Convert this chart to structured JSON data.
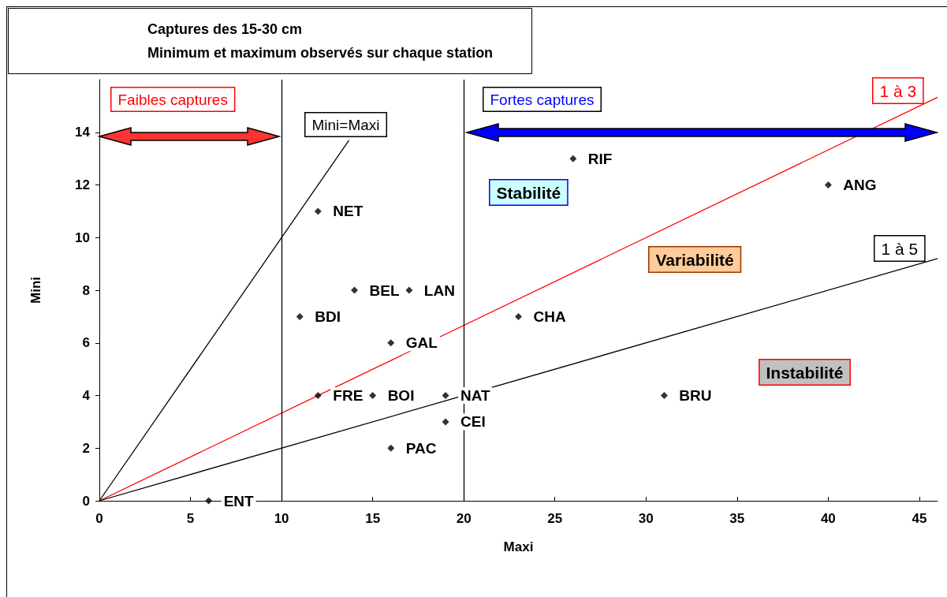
{
  "chart_data": {
    "type": "scatter",
    "title": "Captures des 15-30 cm\nMinimum et maximum observés sur chaque station",
    "xlabel": "Maxi",
    "ylabel": "Mini",
    "x": [
      6,
      12,
      15,
      19,
      19,
      16,
      11,
      14,
      17,
      16,
      12,
      26,
      40,
      23,
      31
    ],
    "series": [
      {
        "color": "#000000",
        "values": [
          0,
          4,
          4,
          4,
          3,
          2,
          7,
          8,
          8,
          6,
          11,
          13,
          12,
          7,
          4
        ]
      },
      {
        "type": "line",
        "marker": "none",
        "color": "#000000",
        "x": [
          0,
          13.7
        ],
        "values": [
          0,
          13.7
        ]
      },
      {
        "type": "line",
        "marker": "none",
        "color": "#ff0000",
        "x": [
          0,
          46
        ],
        "values": [
          0,
          15.33
        ]
      },
      {
        "type": "line",
        "marker": "none",
        "color": "#000000",
        "x": [
          0,
          46
        ],
        "values": [
          0,
          9.2
        ]
      }
    ],
    "xlim": [
      0,
      46
    ],
    "ylim": [
      0,
      16
    ],
    "xticks": [
      0,
      5,
      10,
      15,
      20,
      25,
      30,
      35,
      40,
      45
    ],
    "yticks": [
      0,
      2,
      4,
      6,
      8,
      10,
      12,
      14
    ],
    "grid": false,
    "marker": "diamond",
    "line_style": "solid",
    "ref_lines": [
      {
        "axis": "x",
        "value": 10
      },
      {
        "axis": "x",
        "value": 20
      }
    ],
    "annotations": [
      "Faibles captures",
      "Fortes captures",
      "Mini=Maxi",
      "1 à 3",
      "1 à 5",
      "Stabilité",
      "Variabilité",
      "Instabilité",
      {
        "text": "ENT",
        "x": 6,
        "y": 0
      },
      {
        "text": "FRE",
        "x": 12,
        "y": 4
      },
      {
        "text": "BOI",
        "x": 15,
        "y": 4
      },
      {
        "text": "NAT",
        "x": 19,
        "y": 4
      },
      {
        "text": "CEI",
        "x": 19,
        "y": 3
      },
      {
        "text": "PAC",
        "x": 16,
        "y": 2
      },
      {
        "text": "BDI",
        "x": 11,
        "y": 7
      },
      {
        "text": "BEL",
        "x": 14,
        "y": 8
      },
      {
        "text": "LAN",
        "x": 17,
        "y": 8
      },
      {
        "text": "GAL",
        "x": 16,
        "y": 6
      },
      {
        "text": "NET",
        "x": 12,
        "y": 11
      },
      {
        "text": "RIF",
        "x": 26,
        "y": 13
      },
      {
        "text": "ANG",
        "x": 40,
        "y": 12
      },
      {
        "text": "CHA",
        "x": 23,
        "y": 7
      },
      {
        "text": "BRU",
        "x": 31,
        "y": 4
      }
    ]
  }
}
